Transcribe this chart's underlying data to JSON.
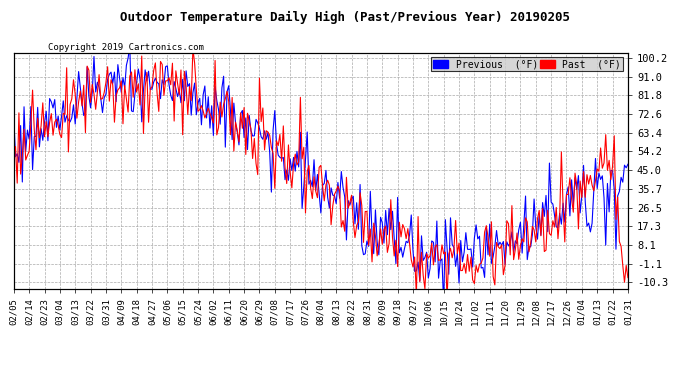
{
  "title": "Outdoor Temperature Daily High (Past/Previous Year) 20190205",
  "copyright": "Copyright 2019 Cartronics.com",
  "yticks": [
    100.2,
    91.0,
    81.8,
    72.6,
    63.4,
    54.2,
    45.0,
    35.7,
    26.5,
    17.3,
    8.1,
    -1.1,
    -10.3
  ],
  "ylim": [
    -13.5,
    103
  ],
  "legend_labels": [
    "Previous  (°F)",
    "Past  (°F)"
  ],
  "bg_color": "#ffffff",
  "fig_bg_color": "#ffffff",
  "xtick_labels": [
    "02/05",
    "02/14",
    "02/23",
    "03/04",
    "03/13",
    "03/22",
    "03/31",
    "04/09",
    "04/18",
    "04/27",
    "05/06",
    "05/15",
    "05/24",
    "06/02",
    "06/11",
    "06/20",
    "06/29",
    "07/08",
    "07/17",
    "07/26",
    "08/04",
    "08/13",
    "08/22",
    "08/31",
    "09/09",
    "09/18",
    "09/27",
    "10/06",
    "10/15",
    "10/24",
    "11/02",
    "11/11",
    "11/20",
    "11/29",
    "12/08",
    "12/17",
    "12/26",
    "01/04",
    "01/13",
    "01/22",
    "01/31"
  ],
  "n_days": 361,
  "prev_seed": 1,
  "past_seed": 2,
  "line_width": 0.8
}
